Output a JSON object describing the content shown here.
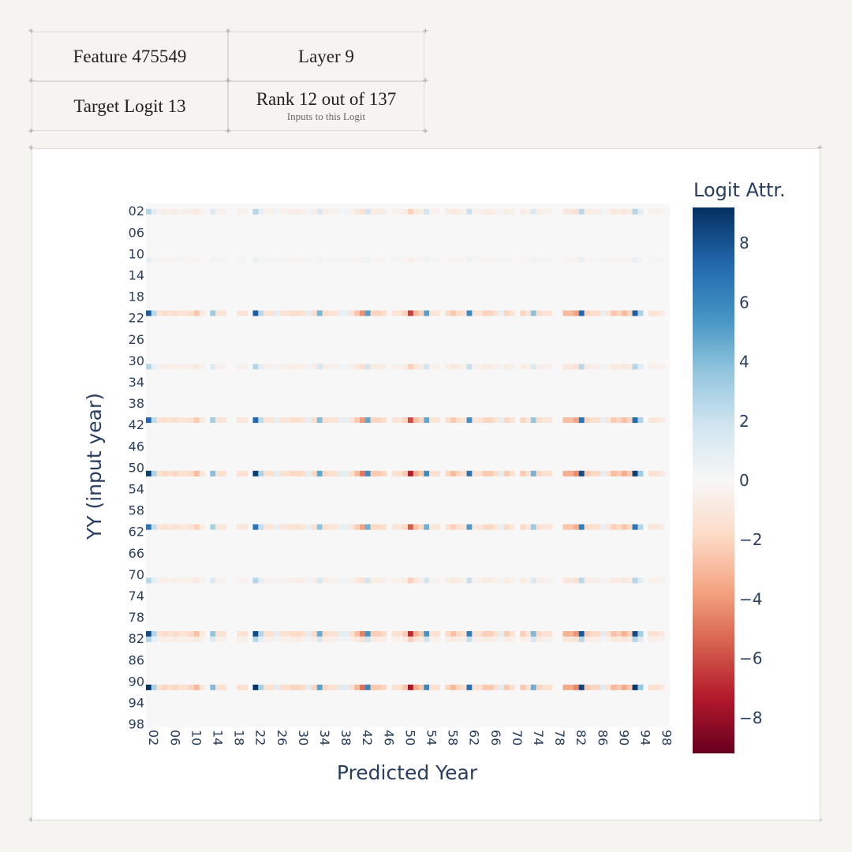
{
  "info_table": {
    "feature": "Feature 475549",
    "layer": "Layer 9",
    "target": "Target Logit 13",
    "rank": "Rank 12 out of 137",
    "rank_sub": "Inputs to this Logit"
  },
  "chart_data": {
    "type": "heatmap",
    "xlabel": "Predicted Year",
    "ylabel": "YY (input year)",
    "x_tick_labels": [
      "02",
      "06",
      "10",
      "14",
      "18",
      "22",
      "26",
      "30",
      "34",
      "38",
      "42",
      "46",
      "50",
      "54",
      "58",
      "62",
      "66",
      "70",
      "74",
      "78",
      "82",
      "86",
      "90",
      "94",
      "98"
    ],
    "y_tick_labels": [
      "02",
      "06",
      "10",
      "14",
      "18",
      "22",
      "26",
      "30",
      "34",
      "38",
      "42",
      "46",
      "50",
      "54",
      "58",
      "62",
      "66",
      "70",
      "74",
      "78",
      "82",
      "86",
      "90",
      "94",
      "98"
    ],
    "n_columns": 98,
    "n_rows": 98,
    "first_year": 1,
    "colorbar_title": "Logit Attr.",
    "colorbar_range": [
      -9.2,
      9.2
    ],
    "colorbar_ticks": [
      8,
      6,
      4,
      2,
      0,
      -2,
      -4,
      -6,
      -8
    ],
    "colorbar_tick_labels": [
      "8",
      "6",
      "4",
      "2",
      "0",
      "−2",
      "−4",
      "−6",
      "−8"
    ],
    "colorscale": [
      "#67001f",
      "#b2182b",
      "#d6604d",
      "#f4a582",
      "#fddbc7",
      "#f7f7f7",
      "#d1e5f0",
      "#92c5de",
      "#4393c3",
      "#2166ac",
      "#053061"
    ],
    "background_value_color": "#f7f7f7",
    "active_rows": [
      {
        "input_year": 2,
        "scale": 0.3
      },
      {
        "input_year": 11,
        "scale": 0.08
      },
      {
        "input_year": 21,
        "scale": 0.85
      },
      {
        "input_year": 31,
        "scale": 0.3
      },
      {
        "input_year": 41,
        "scale": 0.8
      },
      {
        "input_year": 51,
        "scale": 0.97
      },
      {
        "input_year": 61,
        "scale": 0.75
      },
      {
        "input_year": 71,
        "scale": 0.3
      },
      {
        "input_year": 81,
        "scale": 0.92
      },
      {
        "input_year": 82,
        "scale": 0.3
      },
      {
        "input_year": 91,
        "scale": 1.0
      }
    ],
    "column_pattern": [
      {
        "predicted_year": 1,
        "value": 9.0
      },
      {
        "predicted_year": 2,
        "value": 3.0
      },
      {
        "predicted_year": 3,
        "value": -1.5
      },
      {
        "predicted_year": 4,
        "value": -2.0
      },
      {
        "predicted_year": 5,
        "value": -1.5
      },
      {
        "predicted_year": 6,
        "value": -2.0
      },
      {
        "predicted_year": 7,
        "value": -1.5
      },
      {
        "predicted_year": 8,
        "value": -1.5
      },
      {
        "predicted_year": 9,
        "value": -2.0
      },
      {
        "predicted_year": 10,
        "value": -3.0
      },
      {
        "predicted_year": 11,
        "value": -1.0
      },
      {
        "predicted_year": 13,
        "value": 4.0
      },
      {
        "predicted_year": 14,
        "value": -1.5
      },
      {
        "predicted_year": 15,
        "value": -1.5
      },
      {
        "predicted_year": 18,
        "value": -1.5
      },
      {
        "predicted_year": 19,
        "value": -1.5
      },
      {
        "predicted_year": 21,
        "value": 9.0
      },
      {
        "predicted_year": 22,
        "value": 3.0
      },
      {
        "predicted_year": 23,
        "value": -1.5
      },
      {
        "predicted_year": 24,
        "value": -1.5
      },
      {
        "predicted_year": 25,
        "value": 1.0
      },
      {
        "predicted_year": 26,
        "value": -1.5
      },
      {
        "predicted_year": 27,
        "value": -1.5
      },
      {
        "predicted_year": 28,
        "value": -2.0
      },
      {
        "predicted_year": 29,
        "value": -2.0
      },
      {
        "predicted_year": 30,
        "value": -1.5
      },
      {
        "predicted_year": 31,
        "value": 1.0
      },
      {
        "predicted_year": 32,
        "value": -2.0
      },
      {
        "predicted_year": 33,
        "value": 5.0
      },
      {
        "predicted_year": 34,
        "value": -2.0
      },
      {
        "predicted_year": 35,
        "value": -1.5
      },
      {
        "predicted_year": 36,
        "value": -1.5
      },
      {
        "predicted_year": 37,
        "value": 1.0
      },
      {
        "predicted_year": 38,
        "value": 1.0
      },
      {
        "predicted_year": 39,
        "value": -1.5
      },
      {
        "predicted_year": 40,
        "value": -3.0
      },
      {
        "predicted_year": 41,
        "value": -5.0
      },
      {
        "predicted_year": 42,
        "value": 6.0
      },
      {
        "predicted_year": 43,
        "value": -2.5
      },
      {
        "predicted_year": 44,
        "value": -2.5
      },
      {
        "predicted_year": 45,
        "value": -2.0
      },
      {
        "predicted_year": 47,
        "value": -1.5
      },
      {
        "predicted_year": 48,
        "value": -1.5
      },
      {
        "predicted_year": 49,
        "value": -2.5
      },
      {
        "predicted_year": 50,
        "value": -7.5
      },
      {
        "predicted_year": 51,
        "value": -3.5
      },
      {
        "predicted_year": 52,
        "value": -2.5
      },
      {
        "predicted_year": 53,
        "value": 6.0
      },
      {
        "predicted_year": 54,
        "value": -1.5
      },
      {
        "predicted_year": 55,
        "value": -1.5
      },
      {
        "predicted_year": 57,
        "value": -2.0
      },
      {
        "predicted_year": 58,
        "value": -3.0
      },
      {
        "predicted_year": 59,
        "value": -2.0
      },
      {
        "predicted_year": 60,
        "value": -1.5
      },
      {
        "predicted_year": 61,
        "value": 7.0
      },
      {
        "predicted_year": 62,
        "value": -1.5
      },
      {
        "predicted_year": 63,
        "value": -1.5
      },
      {
        "predicted_year": 64,
        "value": -2.5
      },
      {
        "predicted_year": 65,
        "value": -2.5
      },
      {
        "predicted_year": 66,
        "value": -1.5
      },
      {
        "predicted_year": 67,
        "value": 1.0
      },
      {
        "predicted_year": 68,
        "value": -2.5
      },
      {
        "predicted_year": 69,
        "value": -1.5
      },
      {
        "predicted_year": 71,
        "value": -2.5
      },
      {
        "predicted_year": 72,
        "value": -1.5
      },
      {
        "predicted_year": 73,
        "value": 4.5
      },
      {
        "predicted_year": 74,
        "value": -2.0
      },
      {
        "predicted_year": 75,
        "value": -1.5
      },
      {
        "predicted_year": 76,
        "value": -1.5
      },
      {
        "predicted_year": 79,
        "value": -3.5
      },
      {
        "predicted_year": 80,
        "value": -3.5
      },
      {
        "predicted_year": 81,
        "value": -4.5
      },
      {
        "predicted_year": 82,
        "value": 8.5
      },
      {
        "predicted_year": 83,
        "value": -2.5
      },
      {
        "predicted_year": 84,
        "value": -2.0
      },
      {
        "predicted_year": 85,
        "value": -2.0
      },
      {
        "predicted_year": 86,
        "value": 1.0
      },
      {
        "predicted_year": 87,
        "value": -1.5
      },
      {
        "predicted_year": 88,
        "value": -3.0
      },
      {
        "predicted_year": 89,
        "value": -2.5
      },
      {
        "predicted_year": 90,
        "value": -3.5
      },
      {
        "predicted_year": 91,
        "value": -2.5
      },
      {
        "predicted_year": 92,
        "value": 9.0
      },
      {
        "predicted_year": 93,
        "value": 3.5
      },
      {
        "predicted_year": 95,
        "value": -1.5
      },
      {
        "predicted_year": 96,
        "value": -1.5
      },
      {
        "predicted_year": 97,
        "value": -1.0
      }
    ]
  }
}
